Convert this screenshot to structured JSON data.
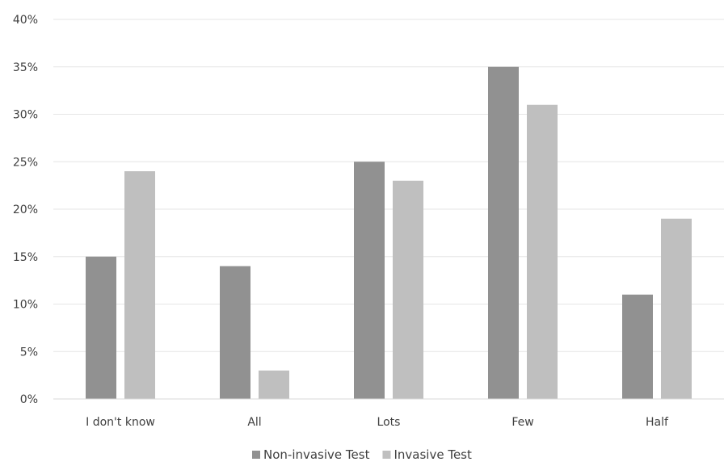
{
  "chart_data": {
    "type": "bar",
    "categories": [
      "I don't know",
      "All",
      "Lots",
      "Few",
      "Half"
    ],
    "series": [
      {
        "name": "Non-invasive Test",
        "values": [
          15,
          14,
          25,
          35,
          11
        ],
        "color": "#919191"
      },
      {
        "name": "Invasive Test",
        "values": [
          24,
          3,
          23,
          31,
          19
        ],
        "color": "#bfbfbf"
      }
    ],
    "y_ticks": [
      "0%",
      "5%",
      "10%",
      "15%",
      "20%",
      "25%",
      "30%",
      "35%",
      "40%"
    ],
    "ylim": [
      0,
      40
    ],
    "grid": true,
    "legend_position": "bottom",
    "gridline_color": "#e6e6e6",
    "text_color": "#404040"
  }
}
